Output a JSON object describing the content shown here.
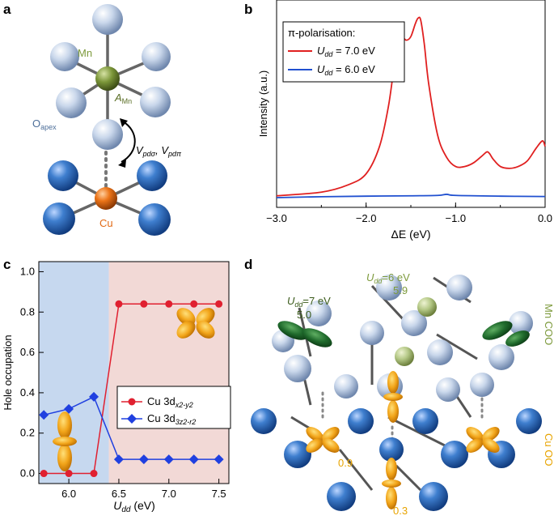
{
  "panel_labels": {
    "a": "a",
    "b": "b",
    "c": "c",
    "d": "d"
  },
  "panel_a": {
    "mn_label": "Mn",
    "a_mn": "A",
    "a_mn_sub": "Mn",
    "o_apex": "O",
    "o_apex_sub": "apex",
    "cu_label": "Cu",
    "v_label": "V",
    "v_sub1": "pdσ",
    "v_sub2": "pdπ",
    "colors": {
      "mn": "#7d9a3c",
      "cu": "#e26a16",
      "o_light": "#c8d6ea",
      "o_dark": "#3f78c0"
    }
  },
  "panel_d": {
    "udd6_label": "U",
    "udd6_sub": "dd",
    "udd6_val": "=6 eV",
    "val_59": "5.9",
    "udd7_label": "U",
    "udd7_sub": "dd",
    "udd7_val": "=7 eV",
    "val_50": "5.0",
    "val_09": "0.9",
    "val_03": "0.3",
    "mn_coo": "Mn COO",
    "cu_oo": "Cu OO",
    "colors": {
      "mn_text": "#7d9a3c",
      "cu_text": "#e8a400",
      "orbital_green": "#1f6a2c",
      "orbital_orange": "#f2a51a"
    }
  },
  "chart_data": [
    {
      "type": "line",
      "panel": "b",
      "legend_title": "π-polarisation:",
      "xlabel": "ΔE (eV)",
      "ylabel": "Intensity (a.u.)",
      "xlim": [
        -3.0,
        0.0
      ],
      "xticks": [
        "−3.0",
        "−2.0",
        "−1.0",
        "0.0"
      ],
      "legend_position": "top-left",
      "series": [
        {
          "name": "U",
          "name_sub": "dd",
          "name_rest": " = 7.0 eV",
          "color": "#e02020",
          "x": [
            -3.0,
            -2.5,
            -2.2,
            -2.0,
            -1.85,
            -1.75,
            -1.68,
            -1.63,
            -1.6,
            -1.55,
            -1.5,
            -1.45,
            -1.42,
            -1.39,
            -1.35,
            -1.3,
            -1.2,
            -1.1,
            -1.0,
            -0.9,
            -0.8,
            -0.7,
            -0.65,
            -0.62,
            -0.58,
            -0.5,
            -0.4,
            -0.3,
            -0.2,
            -0.1,
            -0.03,
            0.0
          ],
          "y": [
            0.01,
            0.03,
            0.07,
            0.13,
            0.28,
            0.5,
            0.74,
            0.86,
            0.88,
            0.86,
            0.88,
            0.95,
            0.98,
            0.97,
            0.84,
            0.62,
            0.34,
            0.22,
            0.17,
            0.17,
            0.19,
            0.23,
            0.25,
            0.24,
            0.21,
            0.17,
            0.16,
            0.17,
            0.2,
            0.27,
            0.31,
            0.28
          ]
        },
        {
          "name": "U",
          "name_sub": "dd",
          "name_rest": " = 6.0 eV",
          "color": "#2050d0",
          "x": [
            -3.0,
            -2.5,
            -2.0,
            -1.5,
            -1.2,
            -1.1,
            -1.0,
            -0.5,
            0.0
          ],
          "y": [
            0.0,
            0.005,
            0.008,
            0.01,
            0.012,
            0.018,
            0.012,
            0.008,
            0.006
          ]
        }
      ]
    },
    {
      "type": "line",
      "panel": "c",
      "xlabel": "U",
      "xlabel_sub": "dd",
      "xlabel_unit": " (eV)",
      "ylabel": "Hole occupation",
      "xlim": [
        5.7,
        7.6
      ],
      "ylim": [
        -0.05,
        1.05
      ],
      "xticks": [
        "6.0",
        "6.5",
        "7.0",
        "7.5"
      ],
      "yticks": [
        "0.0",
        "0.2",
        "0.4",
        "0.6",
        "0.8",
        "1.0"
      ],
      "shaded_regions": [
        {
          "from": 5.7,
          "to": 6.4,
          "color": "#c6d8ef"
        },
        {
          "from": 6.4,
          "to": 7.6,
          "color": "#f2d9d6"
        }
      ],
      "legend_position": "center-right",
      "series": [
        {
          "name": "Cu 3d",
          "name_sub": "x2-y2",
          "color": "#e02030",
          "marker": "circle",
          "x": [
            5.75,
            6.0,
            6.25,
            6.5,
            6.75,
            7.0,
            7.25,
            7.5
          ],
          "y": [
            0.0,
            0.0,
            0.0,
            0.84,
            0.84,
            0.84,
            0.84,
            0.84
          ]
        },
        {
          "name": "Cu 3d",
          "name_sub": "3z2-r2",
          "color": "#2040e0",
          "marker": "diamond",
          "x": [
            5.75,
            6.0,
            6.25,
            6.5,
            6.75,
            7.0,
            7.25,
            7.5
          ],
          "y": [
            0.29,
            0.32,
            0.38,
            0.07,
            0.07,
            0.07,
            0.07,
            0.07
          ]
        }
      ]
    }
  ]
}
